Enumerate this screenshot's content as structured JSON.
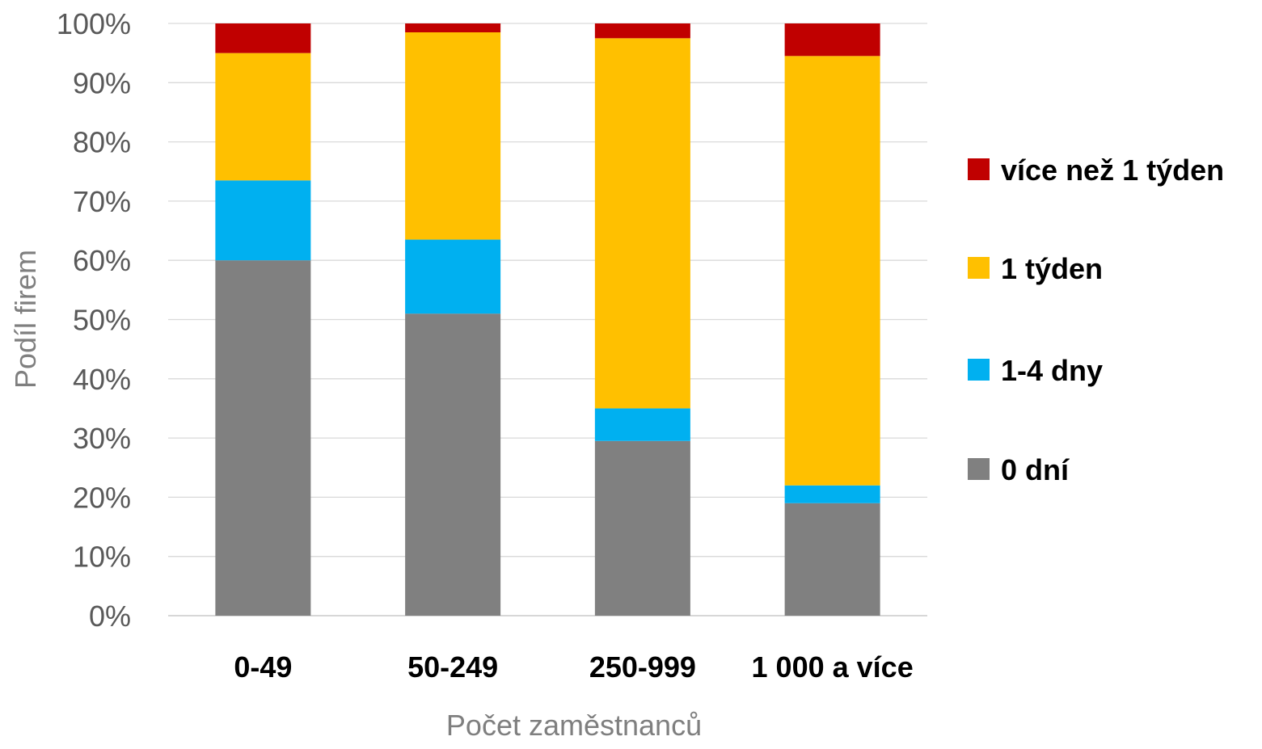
{
  "chart_data": {
    "type": "bar",
    "stacked": true,
    "categories": [
      "0-49",
      "50-249",
      "250-999",
      "1 000 a více"
    ],
    "series": [
      {
        "name": "0 dní",
        "color": "#808080",
        "values": [
          60,
          51,
          29.5,
          19
        ]
      },
      {
        "name": "1-4 dny",
        "color": "#00b0f0",
        "values": [
          13.5,
          12.5,
          5.5,
          3
        ]
      },
      {
        "name": "1 týden",
        "color": "#ffc000",
        "values": [
          21.5,
          35,
          62.5,
          72.5
        ]
      },
      {
        "name": "více než 1 týden",
        "color": "#c00000",
        "values": [
          5,
          1.5,
          2.5,
          5.5
        ]
      }
    ],
    "xlabel": "Počet zaměstnanců",
    "ylabel": "Podíl firem",
    "ylim": [
      0,
      100
    ],
    "yticks": [
      "0%",
      "10%",
      "20%",
      "30%",
      "40%",
      "50%",
      "60%",
      "70%",
      "80%",
      "90%",
      "100%"
    ],
    "grid": true,
    "legend": "right"
  }
}
